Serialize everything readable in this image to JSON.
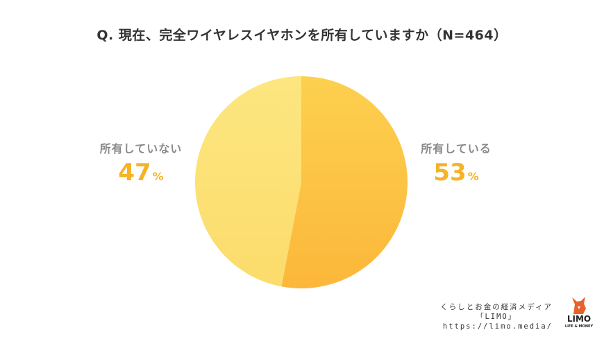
{
  "chart_data": {
    "type": "pie",
    "title": "Q. 現在、完全ワイヤレスイヤホンを所有していますか（N=464）",
    "slices": [
      {
        "label": "所有している",
        "value": 53,
        "color": "#fdc443"
      },
      {
        "label": "所有していない",
        "value": 47,
        "color": "#fce27a"
      }
    ],
    "unit": "%"
  },
  "footer": {
    "tagline": "くらしとお金の経済メディア",
    "brand": "「LIMO」",
    "url": "https://limo.media/"
  },
  "logo": {
    "icon": "limo-fox-logo-icon",
    "word": "LIMO",
    "sub": "LIFE & MONEY",
    "color": "#e8612b"
  }
}
